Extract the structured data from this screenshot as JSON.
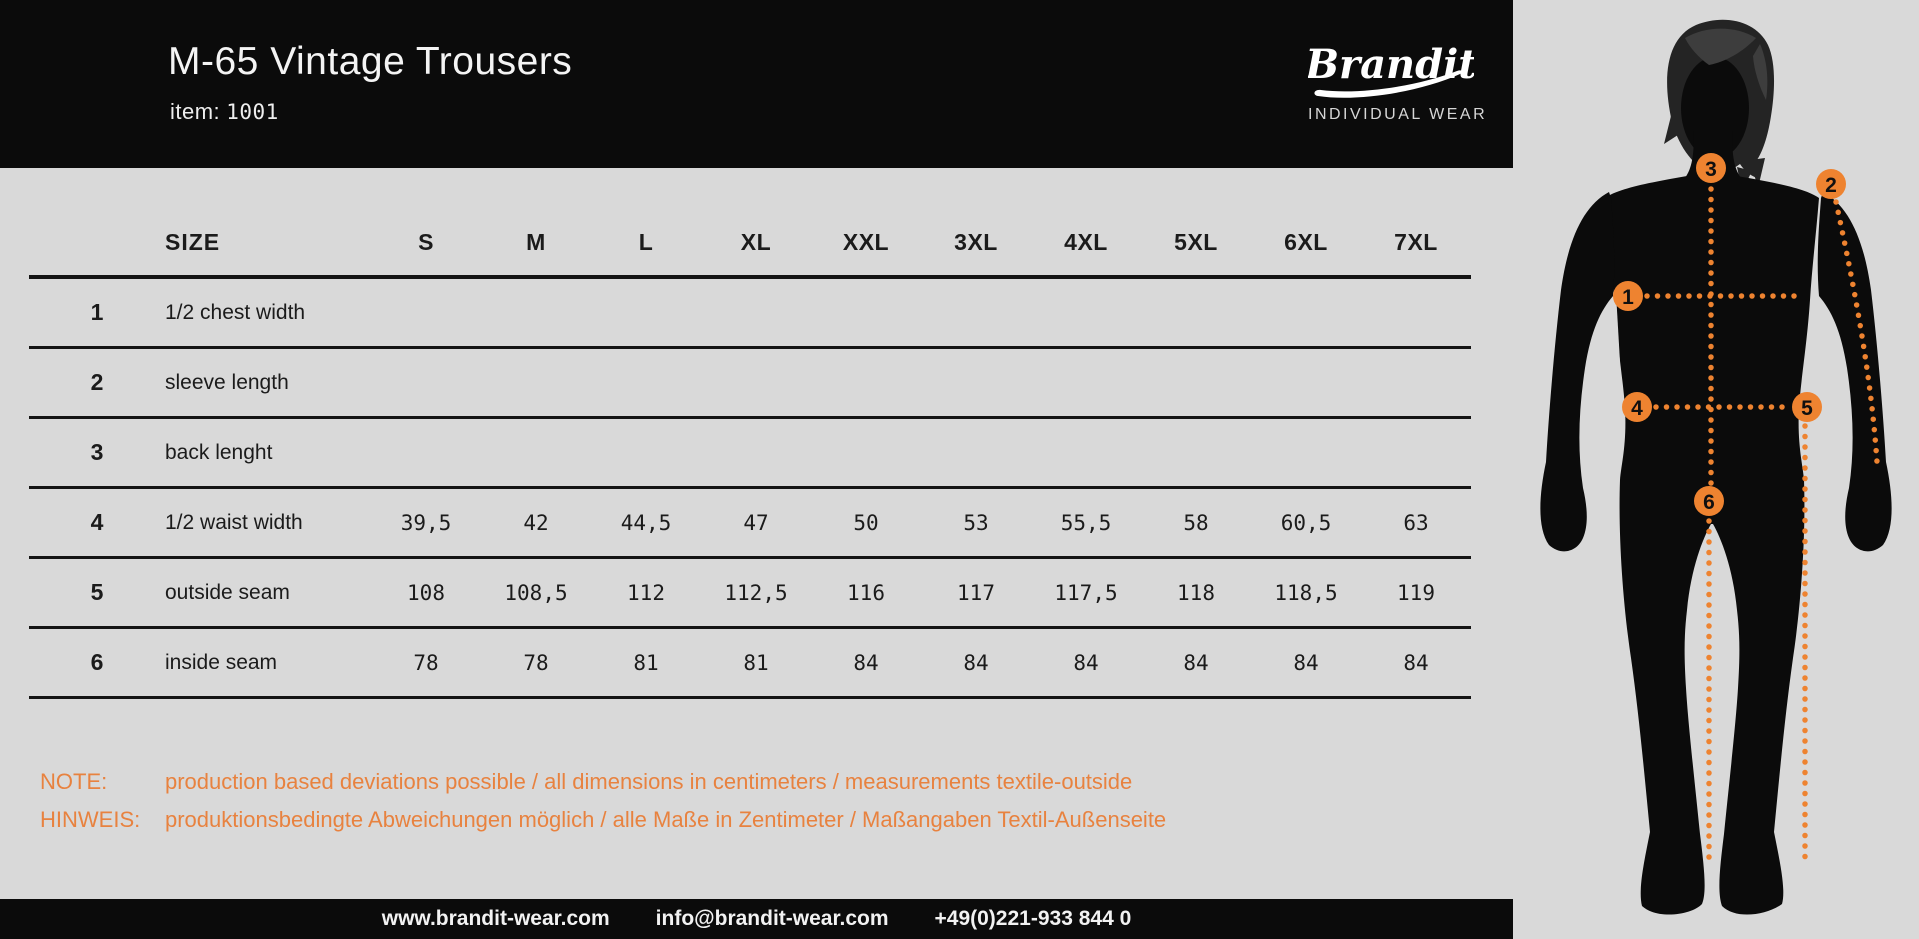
{
  "header": {
    "title": "M-65 Vintage Trousers",
    "item_label": "item:",
    "item_value": "1001",
    "brand": {
      "name": "Brandit",
      "tagline": "INDIVIDUAL WEAR"
    }
  },
  "table": {
    "size_label": "SIZE",
    "sizes": [
      "S",
      "M",
      "L",
      "XL",
      "XXL",
      "3XL",
      "4XL",
      "5XL",
      "6XL",
      "7XL"
    ],
    "rows": [
      {
        "num": "1",
        "label": "1/2 chest width",
        "values": [
          "",
          "",
          "",
          "",
          "",
          "",
          "",
          "",
          "",
          ""
        ]
      },
      {
        "num": "2",
        "label": "sleeve length",
        "values": [
          "",
          "",
          "",
          "",
          "",
          "",
          "",
          "",
          "",
          ""
        ]
      },
      {
        "num": "3",
        "label": "back lenght",
        "values": [
          "",
          "",
          "",
          "",
          "",
          "",
          "",
          "",
          "",
          ""
        ]
      },
      {
        "num": "4",
        "label": "1/2 waist width",
        "values": [
          "39,5",
          "42",
          "44,5",
          "47",
          "50",
          "53",
          "55,5",
          "58",
          "60,5",
          "63"
        ]
      },
      {
        "num": "5",
        "label": "outside seam",
        "values": [
          "108",
          "108,5",
          "112",
          "112,5",
          "116",
          "117",
          "117,5",
          "118",
          "118,5",
          "119"
        ]
      },
      {
        "num": "6",
        "label": "inside seam",
        "values": [
          "78",
          "78",
          "81",
          "81",
          "84",
          "84",
          "84",
          "84",
          "84",
          "84"
        ]
      }
    ]
  },
  "notes": [
    {
      "label": "NOTE:",
      "text": "production based deviations possible / all dimensions in centimeters / measurements textile-outside"
    },
    {
      "label": "HINWEIS:",
      "text": "produktionsbedingte Abweichungen möglich / alle Maße in Zentimeter / Maßangaben Textil-Außenseite"
    }
  ],
  "footer": {
    "website": "www.brandit-wear.com",
    "email": "info@brandit-wear.com",
    "phone": "+49(0)221-933 844 0"
  },
  "figure": {
    "markers": [
      "1",
      "2",
      "3",
      "4",
      "5",
      "6"
    ]
  },
  "colors": {
    "accent": "#ee8330",
    "note": "#e8823f",
    "background": "#d9d9d9",
    "panel": "#0b0b0b"
  }
}
